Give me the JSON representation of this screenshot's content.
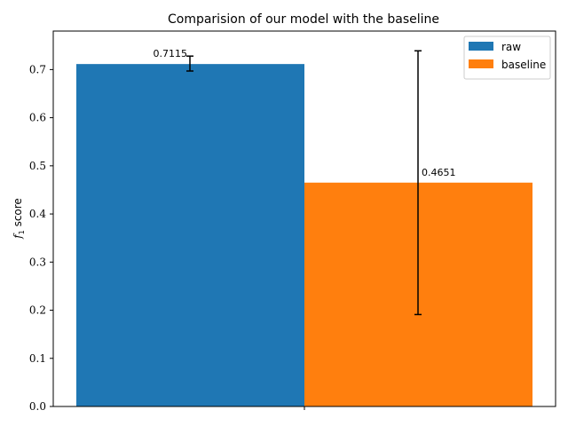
{
  "chart_data": {
    "type": "bar",
    "title": "Comparision of our model with the baseline",
    "xlabel": "",
    "ylabel": "f1 score",
    "ylabel_main": "f",
    "ylabel_sub": "1",
    "ylabel_rest": " score",
    "ylim": [
      0.0,
      0.78
    ],
    "yticks": [
      "0.0",
      "0.1",
      "0.2",
      "0.3",
      "0.4",
      "0.5",
      "0.6",
      "0.7"
    ],
    "legend_position": "top-right",
    "grid": false,
    "series": [
      {
        "name": "raw",
        "value": 0.7115,
        "label": "0.7115",
        "err_low": 0.697,
        "err_high": 0.728,
        "color": "#1f77b4"
      },
      {
        "name": "baseline",
        "value": 0.4651,
        "label": "0.4651",
        "err_low": 0.191,
        "err_high": 0.739,
        "color": "#ff7f0e"
      }
    ]
  }
}
